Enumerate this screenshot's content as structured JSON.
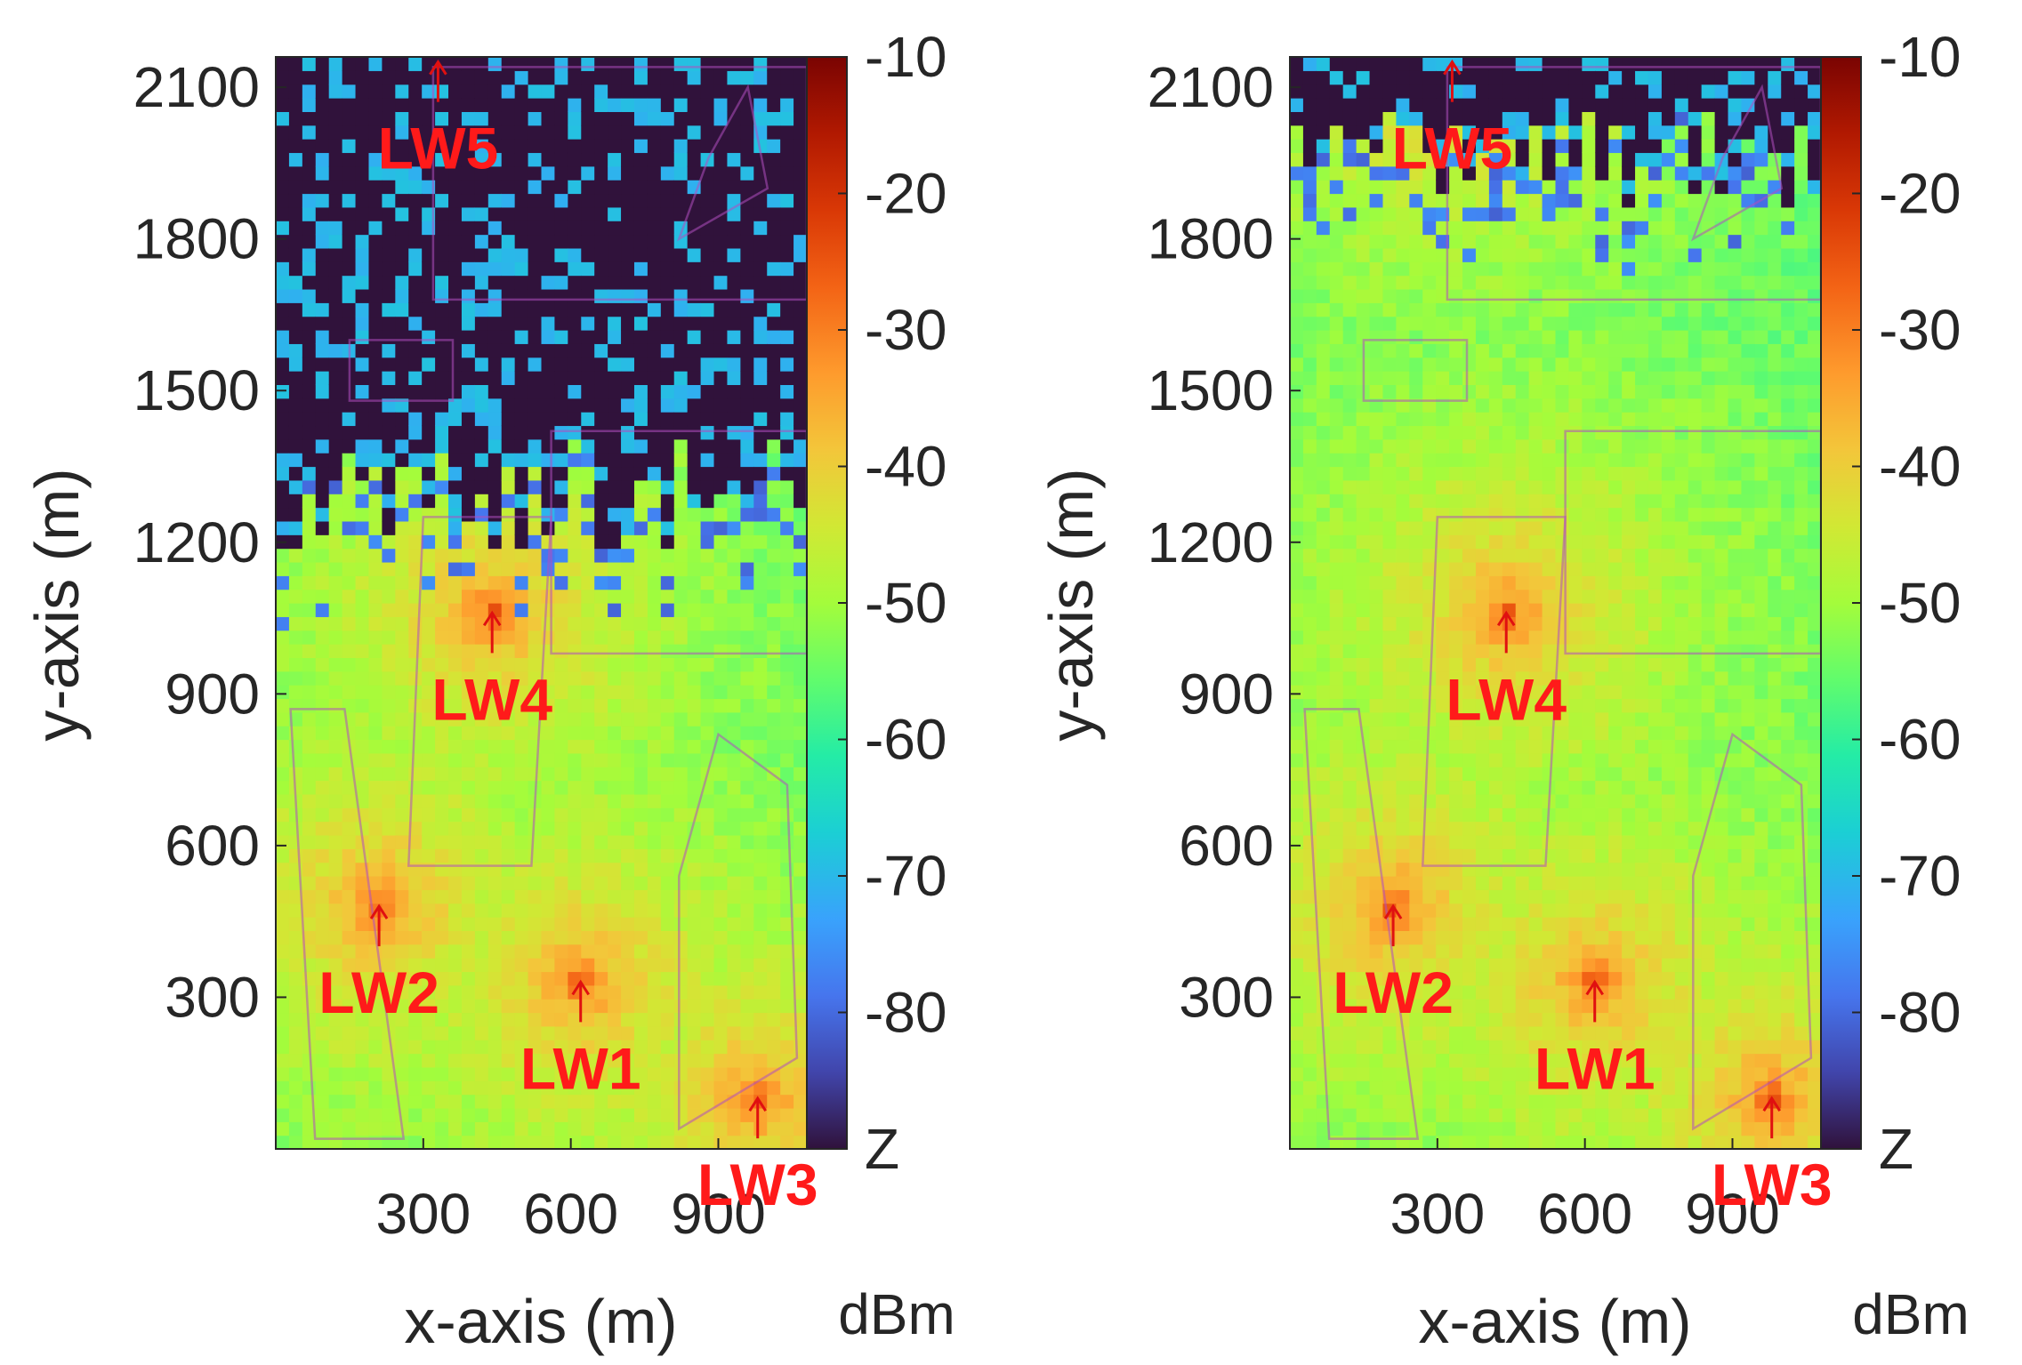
{
  "chart_data": [
    {
      "type": "heatmap",
      "panel": "left",
      "xlabel": "x-axis (m)",
      "ylabel": "y-axis (m)",
      "xticks": [
        300,
        600,
        900
      ],
      "yticks": [
        300,
        600,
        900,
        1200,
        1500,
        1800,
        2100
      ],
      "xlim": [
        0,
        1080
      ],
      "ylim": [
        0,
        2160
      ],
      "colorbar": {
        "label": "dBm",
        "ticks": [
          "-10",
          "-20",
          "-30",
          "-40",
          "-50",
          "-60",
          "-70",
          "-80",
          "Z"
        ],
        "range": [
          -89,
          -10
        ],
        "colormap": "turbo"
      },
      "transmitters": [
        {
          "label": "LW1",
          "x": 620,
          "y": 330
        },
        {
          "label": "LW2",
          "x": 210,
          "y": 480
        },
        {
          "label": "LW3",
          "x": 980,
          "y": 100
        },
        {
          "label": "LW4",
          "x": 440,
          "y": 1060
        },
        {
          "label": "LW5",
          "x": 330,
          "y": 2150
        }
      ],
      "field": {
        "coverage_top": 1300,
        "dead_zone_value": -89,
        "peak": -22,
        "floor": -60
      }
    },
    {
      "type": "heatmap",
      "panel": "right",
      "xlabel": "x-axis (m)",
      "ylabel": "y-axis (m)",
      "xticks": [
        300,
        600,
        900
      ],
      "yticks": [
        300,
        600,
        900,
        1200,
        1500,
        1800,
        2100
      ],
      "xlim": [
        0,
        1080
      ],
      "ylim": [
        0,
        2160
      ],
      "colorbar": {
        "label": "dBm",
        "ticks": [
          "-10",
          "-20",
          "-30",
          "-40",
          "-50",
          "-60",
          "-70",
          "-80",
          "Z"
        ],
        "range": [
          -89,
          -10
        ],
        "colormap": "turbo"
      },
      "transmitters": [
        {
          "label": "LW1",
          "x": 620,
          "y": 330
        },
        {
          "label": "LW2",
          "x": 210,
          "y": 480
        },
        {
          "label": "LW3",
          "x": 980,
          "y": 100
        },
        {
          "label": "LW4",
          "x": 440,
          "y": 1060
        },
        {
          "label": "LW5",
          "x": 330,
          "y": 2150
        }
      ],
      "field": {
        "coverage_top": 1960,
        "dead_zone_value": -89,
        "peak": -22,
        "floor": -60
      }
    }
  ]
}
